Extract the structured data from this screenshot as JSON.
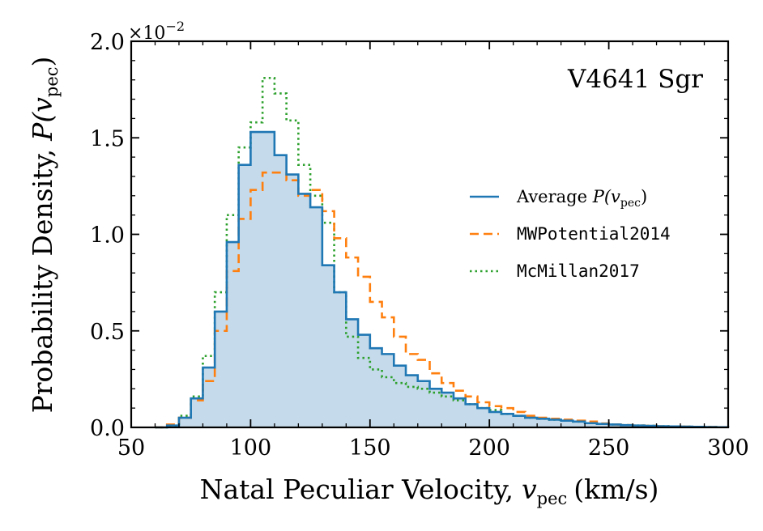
{
  "chart_data": {
    "type": "histogram",
    "title": "",
    "annotation": "V4641 Sgr",
    "xlabel": "Natal Peculiar Velocity, v_pec (km/s)",
    "xlabel_parts": {
      "main": "Natal Peculiar Velocity,",
      "var": "v",
      "sub": "pec",
      "unit": "(km/s)"
    },
    "ylabel": "Probability Density, P(v_pec)",
    "ylabel_parts": {
      "main": "Probability Density,",
      "func": "P(",
      "var": "v",
      "sub": "pec",
      "close": ")"
    },
    "y_multiplier": {
      "base": "×10",
      "exp": "−2"
    },
    "xlim": [
      50,
      300
    ],
    "ylim": [
      0.0,
      2.0
    ],
    "xticks": [
      50,
      100,
      150,
      200,
      250,
      300
    ],
    "xtick_labels": [
      "50",
      "100",
      "150",
      "200",
      "250",
      "300"
    ],
    "yticks": [
      0.0,
      0.5,
      1.0,
      1.5,
      2.0
    ],
    "ytick_labels": [
      "0.0",
      "0.5",
      "1.0",
      "1.5",
      "2.0"
    ],
    "grid": false,
    "legend_position": "right-middle",
    "bin_edges": [
      60,
      65,
      70,
      75,
      80,
      85,
      90,
      95,
      100,
      105,
      110,
      115,
      120,
      125,
      130,
      135,
      140,
      145,
      150,
      155,
      160,
      165,
      170,
      175,
      180,
      185,
      190,
      195,
      200,
      205,
      210,
      215,
      220,
      225,
      230,
      235,
      240,
      245,
      250,
      255,
      260,
      265,
      270,
      275,
      280,
      285,
      290,
      295,
      300
    ],
    "series": [
      {
        "name": "Average P(v_pec)",
        "legend_parts": {
          "prefix": "Average ",
          "func": "P(",
          "var": "v",
          "sub": "pec",
          "close": ")"
        },
        "style": "solid",
        "color": "#1f77b4",
        "fill": "#c5daea",
        "values": [
          0.0,
          0.01,
          0.05,
          0.15,
          0.31,
          0.6,
          0.96,
          1.36,
          1.53,
          1.53,
          1.41,
          1.31,
          1.21,
          1.14,
          0.84,
          0.7,
          0.56,
          0.48,
          0.41,
          0.38,
          0.32,
          0.27,
          0.24,
          0.2,
          0.18,
          0.15,
          0.12,
          0.1,
          0.08,
          0.07,
          0.06,
          0.05,
          0.045,
          0.04,
          0.035,
          0.03,
          0.022,
          0.018,
          0.015,
          0.012,
          0.01,
          0.008,
          0.006,
          0.005,
          0.004,
          0.003,
          0.002,
          0.001
        ]
      },
      {
        "name": "MWPotential2014",
        "style": "dashed",
        "color": "#ff7f0e",
        "values": [
          0.0,
          0.015,
          0.05,
          0.14,
          0.24,
          0.5,
          0.81,
          1.08,
          1.23,
          1.32,
          1.32,
          1.28,
          1.2,
          1.23,
          1.12,
          0.98,
          0.88,
          0.78,
          0.65,
          0.57,
          0.47,
          0.38,
          0.35,
          0.28,
          0.23,
          0.19,
          0.16,
          0.13,
          0.11,
          0.1,
          0.08,
          0.06,
          0.05,
          0.045,
          0.04,
          0.035,
          0.03,
          0.02,
          0.015,
          0.012,
          0.01,
          0.008,
          0.006,
          0.005,
          0.004,
          0.003,
          0.002,
          0.001
        ]
      },
      {
        "name": "McMillan2017",
        "style": "dotted",
        "color": "#2ca02c",
        "values": [
          0.0,
          0.008,
          0.06,
          0.16,
          0.37,
          0.7,
          1.1,
          1.45,
          1.58,
          1.81,
          1.73,
          1.59,
          1.36,
          1.2,
          1.06,
          0.7,
          0.47,
          0.36,
          0.3,
          0.26,
          0.23,
          0.21,
          0.2,
          0.18,
          0.16,
          0.14,
          0.12,
          0.1,
          0.09,
          0.07,
          0.06,
          0.05,
          0.045,
          0.04,
          0.035,
          0.03,
          0.022,
          0.018,
          0.015,
          0.012,
          0.01,
          0.008,
          0.006,
          0.005,
          0.004,
          0.003,
          0.002,
          0.001
        ]
      }
    ]
  }
}
